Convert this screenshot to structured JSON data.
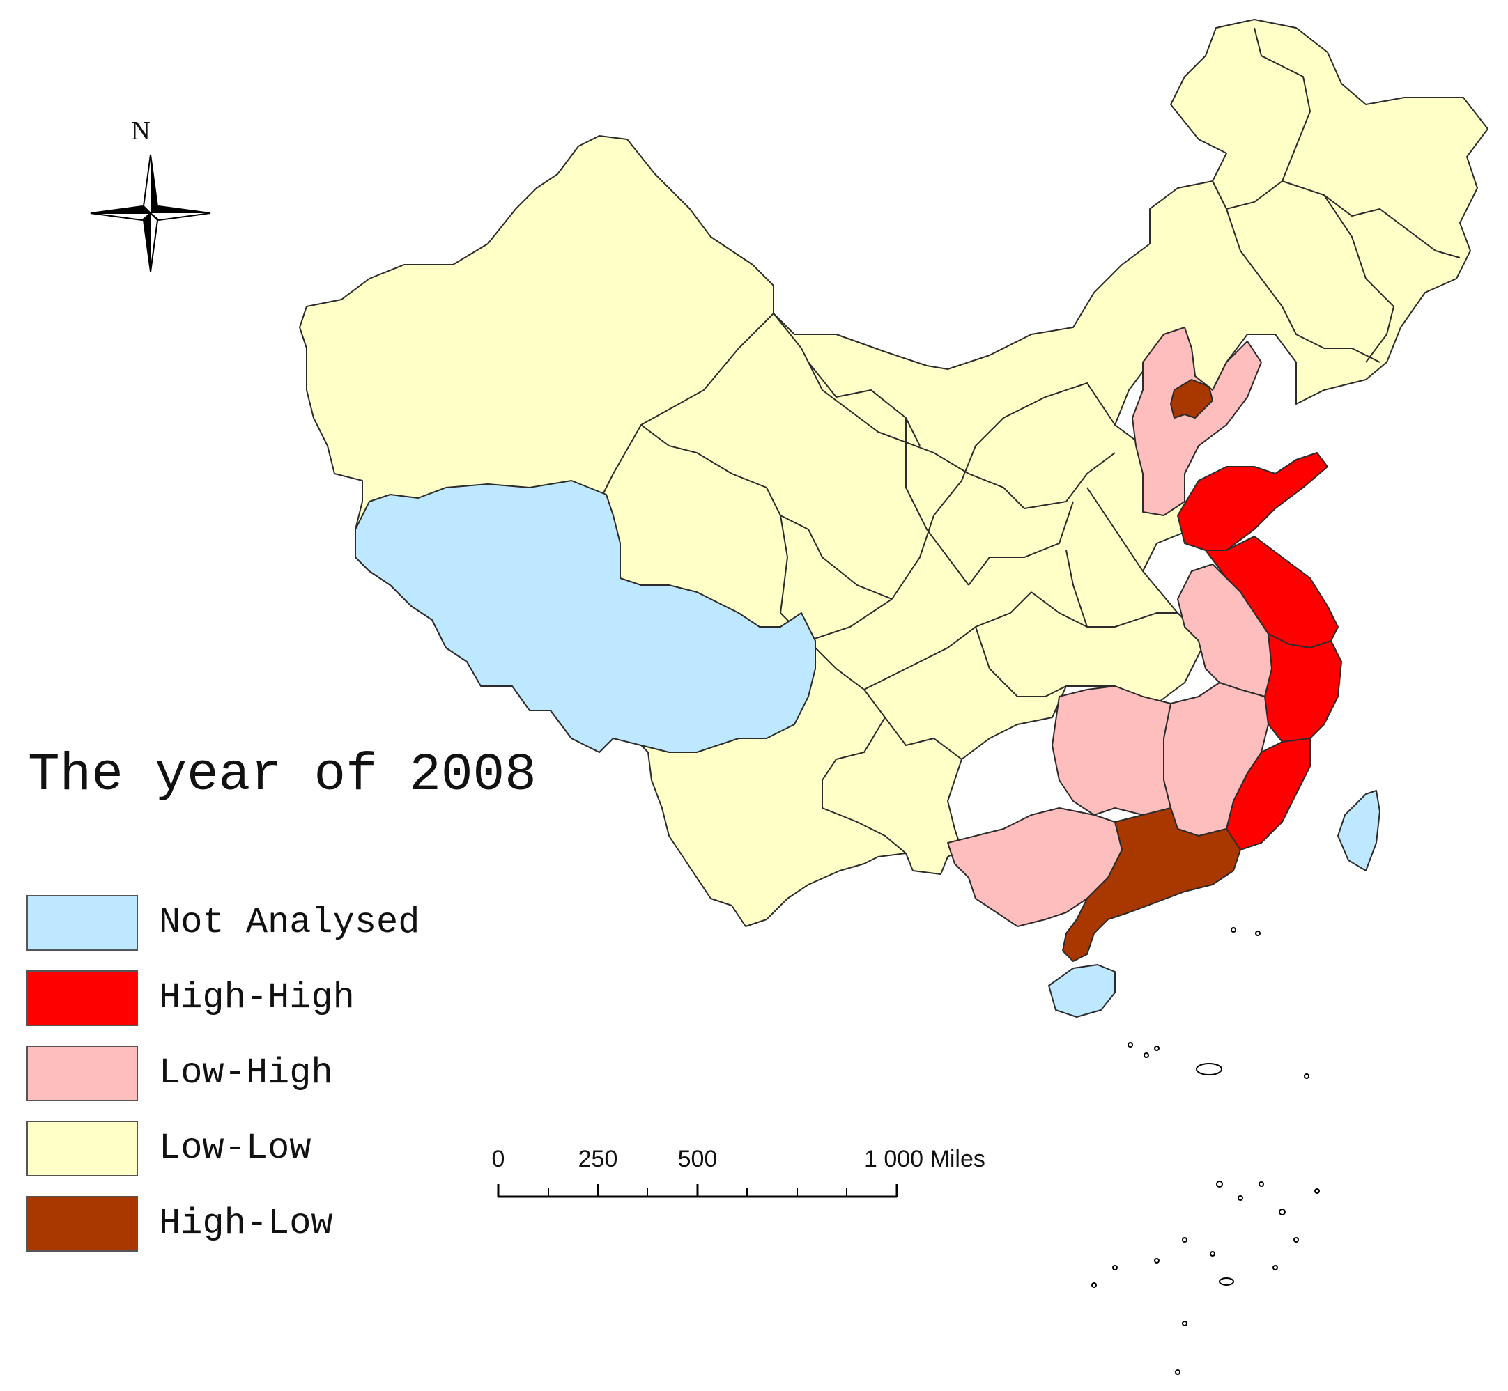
{
  "map": {
    "title": "The year of 2008",
    "north_label": "N",
    "legend": [
      {
        "label": "Not Analysed",
        "color": "#BEE8FF"
      },
      {
        "label": "High-High",
        "color": "#FF0000"
      },
      {
        "label": "Low-High",
        "color": "#FFBEBE"
      },
      {
        "label": "Low-Low",
        "color": "#FFFFC8"
      },
      {
        "label": "High-Low",
        "color": "#A83800"
      }
    ],
    "scale_bar": {
      "ticks": [
        "0",
        "250",
        "500",
        "1 000 Miles"
      ]
    }
  }
}
